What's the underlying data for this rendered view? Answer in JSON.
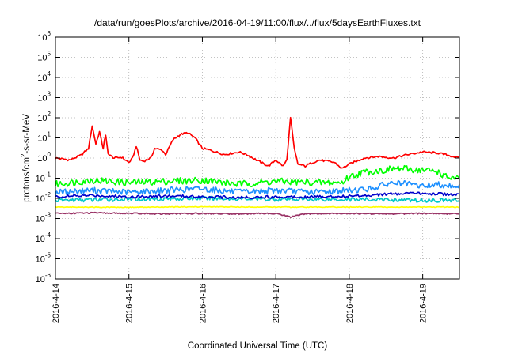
{
  "chart_data": {
    "type": "line",
    "title": "/data/run/goesPlots/archive/2016-04-19/11:00/flux/../flux/5daysEarthFluxes.txt",
    "xlabel": "Coordinated Universal Time (UTC)",
    "ylabel": {
      "pre": "protons/cm",
      "sup": "2",
      "post": "-s-sr-MeV"
    },
    "x_range_days": [
      0,
      5.5
    ],
    "x_ticks": [
      "2016-4-14",
      "2016-4-15",
      "2016-4-16",
      "2016-4-17",
      "2016-4-18",
      "2016-4-19"
    ],
    "y_scale": "log",
    "y_exp_range": [
      -6,
      6
    ],
    "y_tick_exponents": [
      -6,
      -5,
      -4,
      -3,
      -2,
      -1,
      0,
      1,
      2,
      3,
      4,
      5,
      6
    ],
    "grid": true,
    "series": [
      {
        "color": "#ff0000",
        "points": [
          [
            0,
            1.0
          ],
          [
            0.2,
            0.8
          ],
          [
            0.35,
            1.4
          ],
          [
            0.45,
            3
          ],
          [
            0.5,
            40
          ],
          [
            0.55,
            5
          ],
          [
            0.6,
            20
          ],
          [
            0.65,
            3
          ],
          [
            0.68,
            15
          ],
          [
            0.72,
            1.5
          ],
          [
            0.8,
            1.0
          ],
          [
            0.9,
            1.1
          ],
          [
            1.0,
            0.6
          ],
          [
            1.05,
            1.0
          ],
          [
            1.1,
            4
          ],
          [
            1.15,
            0.8
          ],
          [
            1.2,
            0.7
          ],
          [
            1.3,
            1.0
          ],
          [
            1.35,
            3
          ],
          [
            1.45,
            2.5
          ],
          [
            1.5,
            1.5
          ],
          [
            1.6,
            8
          ],
          [
            1.7,
            15
          ],
          [
            1.8,
            18
          ],
          [
            1.9,
            10
          ],
          [
            2.0,
            3
          ],
          [
            2.1,
            2.5
          ],
          [
            2.3,
            1.5
          ],
          [
            2.5,
            2
          ],
          [
            2.6,
            1.5
          ],
          [
            2.8,
            0.6
          ],
          [
            2.9,
            0.4
          ],
          [
            3.0,
            0.8
          ],
          [
            3.1,
            0.4
          ],
          [
            3.15,
            0.8
          ],
          [
            3.2,
            100
          ],
          [
            3.25,
            3
          ],
          [
            3.3,
            0.5
          ],
          [
            3.4,
            0.4
          ],
          [
            3.5,
            0.6
          ],
          [
            3.6,
            0.8
          ],
          [
            3.8,
            0.6
          ],
          [
            3.9,
            0.3
          ],
          [
            4.0,
            0.5
          ],
          [
            4.2,
            1.0
          ],
          [
            4.4,
            1.2
          ],
          [
            4.6,
            1.0
          ],
          [
            4.8,
            1.5
          ],
          [
            5.0,
            2.0
          ],
          [
            5.2,
            1.8
          ],
          [
            5.3,
            1.5
          ],
          [
            5.5,
            1.0
          ]
        ]
      },
      {
        "color": "#00ff00",
        "points": [
          [
            0,
            0.05
          ],
          [
            0.5,
            0.08
          ],
          [
            1.0,
            0.06
          ],
          [
            1.5,
            0.07
          ],
          [
            2.0,
            0.08
          ],
          [
            2.5,
            0.05
          ],
          [
            3.0,
            0.07
          ],
          [
            3.5,
            0.06
          ],
          [
            3.9,
            0.06
          ],
          [
            4.0,
            0.12
          ],
          [
            4.2,
            0.2
          ],
          [
            4.5,
            0.25
          ],
          [
            4.6,
            0.3
          ],
          [
            4.8,
            0.28
          ],
          [
            5.0,
            0.25
          ],
          [
            5.2,
            0.22
          ],
          [
            5.3,
            0.12
          ],
          [
            5.5,
            0.09
          ]
        ]
      },
      {
        "color": "#1e90ff",
        "points": [
          [
            0,
            0.02
          ],
          [
            0.5,
            0.025
          ],
          [
            1.0,
            0.02
          ],
          [
            1.5,
            0.025
          ],
          [
            2.0,
            0.03
          ],
          [
            2.5,
            0.02
          ],
          [
            3.0,
            0.025
          ],
          [
            3.5,
            0.02
          ],
          [
            4.0,
            0.025
          ],
          [
            4.3,
            0.03
          ],
          [
            4.5,
            0.05
          ],
          [
            4.6,
            0.06
          ],
          [
            4.8,
            0.05
          ],
          [
            5.0,
            0.04
          ],
          [
            5.2,
            0.05
          ],
          [
            5.3,
            0.045
          ],
          [
            5.5,
            0.04
          ]
        ]
      },
      {
        "color": "#00c8c8",
        "points": [
          [
            0,
            0.008
          ],
          [
            1.0,
            0.009
          ],
          [
            2.0,
            0.01
          ],
          [
            3.0,
            0.009
          ],
          [
            4.0,
            0.009
          ],
          [
            5.0,
            0.008
          ],
          [
            5.5,
            0.008
          ]
        ]
      },
      {
        "color": "#0000cc",
        "points": [
          [
            0,
            0.012
          ],
          [
            0.5,
            0.014
          ],
          [
            1.0,
            0.012
          ],
          [
            1.5,
            0.013
          ],
          [
            2.0,
            0.012
          ],
          [
            2.5,
            0.011
          ],
          [
            3.0,
            0.012
          ],
          [
            3.5,
            0.012
          ],
          [
            4.0,
            0.013
          ],
          [
            4.5,
            0.016
          ],
          [
            5.0,
            0.018
          ],
          [
            5.5,
            0.015
          ]
        ]
      },
      {
        "color": "#ffff00",
        "points": [
          [
            0,
            0.0037
          ],
          [
            1.0,
            0.0036
          ],
          [
            2.0,
            0.0038
          ],
          [
            3.0,
            0.0037
          ],
          [
            4.0,
            0.0037
          ],
          [
            5.0,
            0.0037
          ],
          [
            5.5,
            0.0037
          ]
        ]
      },
      {
        "color": "#993366",
        "points": [
          [
            0,
            0.0018
          ],
          [
            0.5,
            0.0019
          ],
          [
            1.0,
            0.0018
          ],
          [
            1.5,
            0.0017
          ],
          [
            2.0,
            0.0018
          ],
          [
            2.5,
            0.0017
          ],
          [
            3.0,
            0.0018
          ],
          [
            3.2,
            0.0012
          ],
          [
            3.4,
            0.0017
          ],
          [
            4.0,
            0.0018
          ],
          [
            4.5,
            0.0017
          ],
          [
            5.0,
            0.0018
          ],
          [
            5.5,
            0.0017
          ]
        ]
      }
    ]
  }
}
